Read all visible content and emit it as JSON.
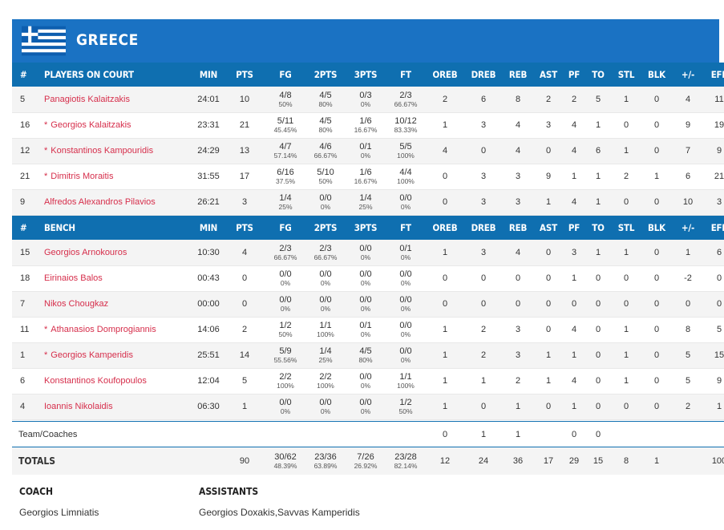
{
  "team": {
    "name": "GREECE"
  },
  "columns": [
    "#",
    "MIN",
    "PTS",
    "FG",
    "2PTS",
    "3PTS",
    "FT",
    "OREB",
    "DREB",
    "REB",
    "AST",
    "PF",
    "TO",
    "STL",
    "BLK",
    "+/-",
    "EFF"
  ],
  "sections": {
    "court_label": "PLAYERS ON COURT",
    "bench_label": "BENCH"
  },
  "players_on_court": [
    {
      "no": "5",
      "name": "Panagiotis Kalaitzakis",
      "star": false,
      "min": "24:01",
      "pts": "10",
      "fg": "4/8",
      "fgp": "50%",
      "p2": "4/5",
      "p2p": "80%",
      "p3": "0/3",
      "p3p": "0%",
      "ft": "2/3",
      "ftp": "66.67%",
      "oreb": "2",
      "dreb": "6",
      "reb": "8",
      "ast": "2",
      "pf": "2",
      "to": "5",
      "stl": "1",
      "blk": "0",
      "pm": "4",
      "eff": "11"
    },
    {
      "no": "16",
      "name": "Georgios Kalaitzakis",
      "star": true,
      "min": "23:31",
      "pts": "21",
      "fg": "5/11",
      "fgp": "45.45%",
      "p2": "4/5",
      "p2p": "80%",
      "p3": "1/6",
      "p3p": "16.67%",
      "ft": "10/12",
      "ftp": "83.33%",
      "oreb": "1",
      "dreb": "3",
      "reb": "4",
      "ast": "3",
      "pf": "4",
      "to": "1",
      "stl": "0",
      "blk": "0",
      "pm": "9",
      "eff": "19"
    },
    {
      "no": "12",
      "name": "Konstantinos Kampouridis",
      "star": true,
      "min": "24:29",
      "pts": "13",
      "fg": "4/7",
      "fgp": "57.14%",
      "p2": "4/6",
      "p2p": "66.67%",
      "p3": "0/1",
      "p3p": "0%",
      "ft": "5/5",
      "ftp": "100%",
      "oreb": "4",
      "dreb": "0",
      "reb": "4",
      "ast": "0",
      "pf": "4",
      "to": "6",
      "stl": "1",
      "blk": "0",
      "pm": "7",
      "eff": "9"
    },
    {
      "no": "21",
      "name": "Dimitris Moraitis",
      "star": true,
      "min": "31:55",
      "pts": "17",
      "fg": "6/16",
      "fgp": "37.5%",
      "p2": "5/10",
      "p2p": "50%",
      "p3": "1/6",
      "p3p": "16.67%",
      "ft": "4/4",
      "ftp": "100%",
      "oreb": "0",
      "dreb": "3",
      "reb": "3",
      "ast": "9",
      "pf": "1",
      "to": "1",
      "stl": "2",
      "blk": "1",
      "pm": "6",
      "eff": "21"
    },
    {
      "no": "9",
      "name": "Alfredos Alexandros Pilavios",
      "star": false,
      "min": "26:21",
      "pts": "3",
      "fg": "1/4",
      "fgp": "25%",
      "p2": "0/0",
      "p2p": "0%",
      "p3": "1/4",
      "p3p": "25%",
      "ft": "0/0",
      "ftp": "0%",
      "oreb": "0",
      "dreb": "3",
      "reb": "3",
      "ast": "1",
      "pf": "4",
      "to": "1",
      "stl": "0",
      "blk": "0",
      "pm": "10",
      "eff": "3"
    }
  ],
  "bench": [
    {
      "no": "15",
      "name": "Georgios Arnokouros",
      "star": false,
      "min": "10:30",
      "pts": "4",
      "fg": "2/3",
      "fgp": "66.67%",
      "p2": "2/3",
      "p2p": "66.67%",
      "p3": "0/0",
      "p3p": "0%",
      "ft": "0/1",
      "ftp": "0%",
      "oreb": "1",
      "dreb": "3",
      "reb": "4",
      "ast": "0",
      "pf": "3",
      "to": "1",
      "stl": "1",
      "blk": "0",
      "pm": "1",
      "eff": "6"
    },
    {
      "no": "18",
      "name": "Eirinaios Balos",
      "star": false,
      "min": "00:43",
      "pts": "0",
      "fg": "0/0",
      "fgp": "0%",
      "p2": "0/0",
      "p2p": "0%",
      "p3": "0/0",
      "p3p": "0%",
      "ft": "0/0",
      "ftp": "0%",
      "oreb": "0",
      "dreb": "0",
      "reb": "0",
      "ast": "0",
      "pf": "1",
      "to": "0",
      "stl": "0",
      "blk": "0",
      "pm": "-2",
      "eff": "0"
    },
    {
      "no": "7",
      "name": "Nikos Chougkaz",
      "star": false,
      "min": "00:00",
      "pts": "0",
      "fg": "0/0",
      "fgp": "0%",
      "p2": "0/0",
      "p2p": "0%",
      "p3": "0/0",
      "p3p": "0%",
      "ft": "0/0",
      "ftp": "0%",
      "oreb": "0",
      "dreb": "0",
      "reb": "0",
      "ast": "0",
      "pf": "0",
      "to": "0",
      "stl": "0",
      "blk": "0",
      "pm": "0",
      "eff": "0"
    },
    {
      "no": "11",
      "name": "Athanasios Domprogiannis",
      "star": true,
      "min": "14:06",
      "pts": "2",
      "fg": "1/2",
      "fgp": "50%",
      "p2": "1/1",
      "p2p": "100%",
      "p3": "0/1",
      "p3p": "0%",
      "ft": "0/0",
      "ftp": "0%",
      "oreb": "1",
      "dreb": "2",
      "reb": "3",
      "ast": "0",
      "pf": "4",
      "to": "0",
      "stl": "1",
      "blk": "0",
      "pm": "8",
      "eff": "5"
    },
    {
      "no": "1",
      "name": "Georgios Kamperidis",
      "star": true,
      "min": "25:51",
      "pts": "14",
      "fg": "5/9",
      "fgp": "55.56%",
      "p2": "1/4",
      "p2p": "25%",
      "p3": "4/5",
      "p3p": "80%",
      "ft": "0/0",
      "ftp": "0%",
      "oreb": "1",
      "dreb": "2",
      "reb": "3",
      "ast": "1",
      "pf": "1",
      "to": "0",
      "stl": "1",
      "blk": "0",
      "pm": "5",
      "eff": "15"
    },
    {
      "no": "6",
      "name": "Konstantinos Koufopoulos",
      "star": false,
      "min": "12:04",
      "pts": "5",
      "fg": "2/2",
      "fgp": "100%",
      "p2": "2/2",
      "p2p": "100%",
      "p3": "0/0",
      "p3p": "0%",
      "ft": "1/1",
      "ftp": "100%",
      "oreb": "1",
      "dreb": "1",
      "reb": "2",
      "ast": "1",
      "pf": "4",
      "to": "0",
      "stl": "1",
      "blk": "0",
      "pm": "5",
      "eff": "9"
    },
    {
      "no": "4",
      "name": "Ioannis Nikolaidis",
      "star": false,
      "min": "06:30",
      "pts": "1",
      "fg": "0/0",
      "fgp": "0%",
      "p2": "0/0",
      "p2p": "0%",
      "p3": "0/0",
      "p3p": "0%",
      "ft": "1/2",
      "ftp": "50%",
      "oreb": "1",
      "dreb": "0",
      "reb": "1",
      "ast": "0",
      "pf": "1",
      "to": "0",
      "stl": "0",
      "blk": "0",
      "pm": "2",
      "eff": "1"
    }
  ],
  "team_coaches": {
    "label": "Team/Coaches",
    "oreb": "0",
    "dreb": "1",
    "reb": "1",
    "pf": "0",
    "to": "0"
  },
  "totals": {
    "label": "TOTALS",
    "pts": "90",
    "fg": "30/62",
    "fgp": "48.39%",
    "p2": "23/36",
    "p2p": "63.89%",
    "p3": "7/26",
    "p3p": "26.92%",
    "ft": "23/28",
    "ftp": "82.14%",
    "oreb": "12",
    "dreb": "24",
    "reb": "36",
    "ast": "17",
    "pf": "29",
    "to": "15",
    "stl": "8",
    "blk": "1",
    "pm": "",
    "eff": "100"
  },
  "staff": {
    "coach_label": "COACH",
    "coach_name": "Georgios Limniatis",
    "assistants_label": "ASSISTANTS",
    "assistants_names": "Georgios Doxakis,Savvas Kamperidis"
  },
  "colors": {
    "header_blue": "#1a72c3",
    "table_header_blue": "#0f6fb0",
    "player_name_red": "#d62e4b"
  },
  "icons": {
    "flag": "greece-flag-icon"
  }
}
